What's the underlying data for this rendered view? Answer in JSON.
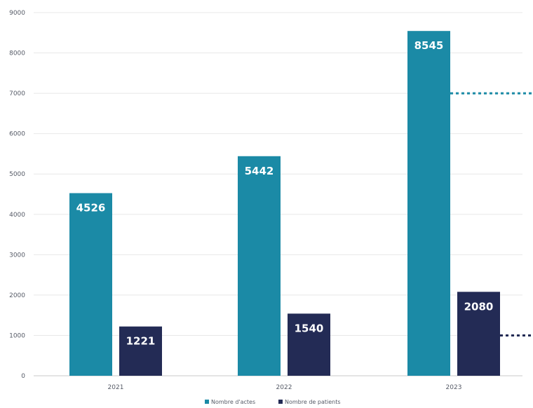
{
  "colors": {
    "actes": "#1b8aa6",
    "patients": "#232b55",
    "grid": "#e8e8e8",
    "axis": "#c8c8c8"
  },
  "chart_data": {
    "type": "bar",
    "categories": [
      "2021",
      "2022",
      "2023"
    ],
    "series": [
      {
        "name": "Nombre d'actes",
        "values": [
          4526,
          5442,
          8545
        ]
      },
      {
        "name": "Nombre de patients",
        "values": [
          1221,
          1540,
          2080
        ]
      }
    ],
    "ylim": [
      0,
      9000
    ],
    "yticks": [
      0,
      1000,
      2000,
      3000,
      4000,
      5000,
      6000,
      7000,
      8000,
      9000
    ],
    "grid": true,
    "legend": "bottom",
    "annotations": [
      {
        "type": "dotted-line",
        "at_value": 7000,
        "series": "Nombre d'actes",
        "color": "#1b8aa6"
      },
      {
        "type": "dotted-line",
        "at_value": 1000,
        "series": "Nombre de patients",
        "color": "#232b55"
      }
    ]
  }
}
